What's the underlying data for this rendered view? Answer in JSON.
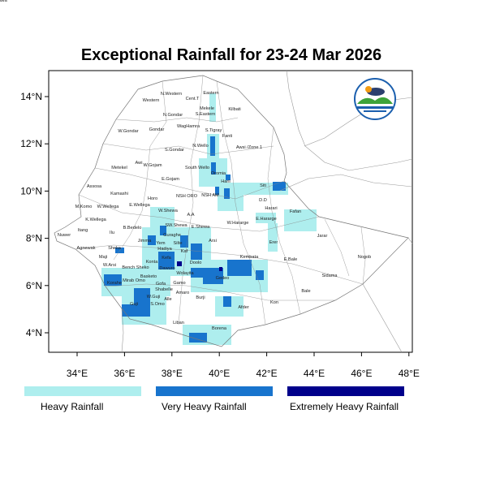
{
  "title": "Exceptional Rainfall for 23-24 Mar 2026",
  "logo": {
    "text": "Ethiopian Meteorology Institute"
  },
  "axes": {
    "x_ticks": [
      "34°E",
      "36°E",
      "38°E",
      "40°E",
      "42°E",
      "44°E",
      "46°E",
      "48°E"
    ],
    "y_ticks": [
      "14°N",
      "12°N",
      "10°N",
      "8°N",
      "6°N",
      "4°N"
    ]
  },
  "legend": [
    {
      "label": "Heavy Rainfall",
      "color": "#aeeeee"
    },
    {
      "label": "Very Heavy Rainfall",
      "color": "#1874cd"
    },
    {
      "label": "Extremely Heavy Rainfall",
      "color": "#00008b"
    }
  ],
  "regions": [
    "Western",
    "N.Western",
    "Cent.T",
    "Eastern",
    "Kilbati",
    "Mekele",
    "S.Eastern",
    "N.Gondar",
    "W.Gondar",
    "Gondar",
    "WagHamra",
    "S.Tigray",
    "Fanti",
    "Awsi /Zone 1",
    "N.Wello",
    "S.Gondar",
    "Metekel",
    "Awi",
    "W.Gojam",
    "South Wello",
    "Oromia",
    "E.Gojam",
    "Harii",
    "Assosa",
    "Siti",
    "Kamashi",
    "Horo",
    "NSH ORO",
    "NSH AM",
    "D.D",
    "Harari",
    "M.Komo",
    "W.Wellega",
    "E.Wellega",
    "W.Shewa",
    "A.A",
    "Fafan",
    "E.Hararge",
    "K.Wellega",
    "W.Hararge",
    "SW.Shewa",
    "E.Shewa",
    "Itang",
    "B.Bedelo",
    "Nuwer",
    "Ilu",
    "Guraghe",
    "Jarar",
    "Jimma",
    "Arsi",
    "Yem",
    "Silte",
    "Erer",
    "Agnewak",
    "Sheka",
    "Maji",
    "Hadiya",
    "Kaf",
    "Kefa",
    "Kembata",
    "E.Bale",
    "Nogob",
    "Doolo",
    "W.Arsi",
    "Bench Sheko",
    "Konta",
    "Dawuro",
    "Wolayita",
    "Sidama",
    "Korahe",
    "Mirab Omo",
    "Basketo",
    "Gofa",
    "Gamo",
    "Gedeo",
    "Bale",
    "Shabelle",
    "Amaro",
    "W.Guji",
    "Alle",
    "Burji",
    "Guji",
    "S.Omo",
    "Kon",
    "Afder",
    "Liban",
    "Borena",
    "Daawa"
  ]
}
